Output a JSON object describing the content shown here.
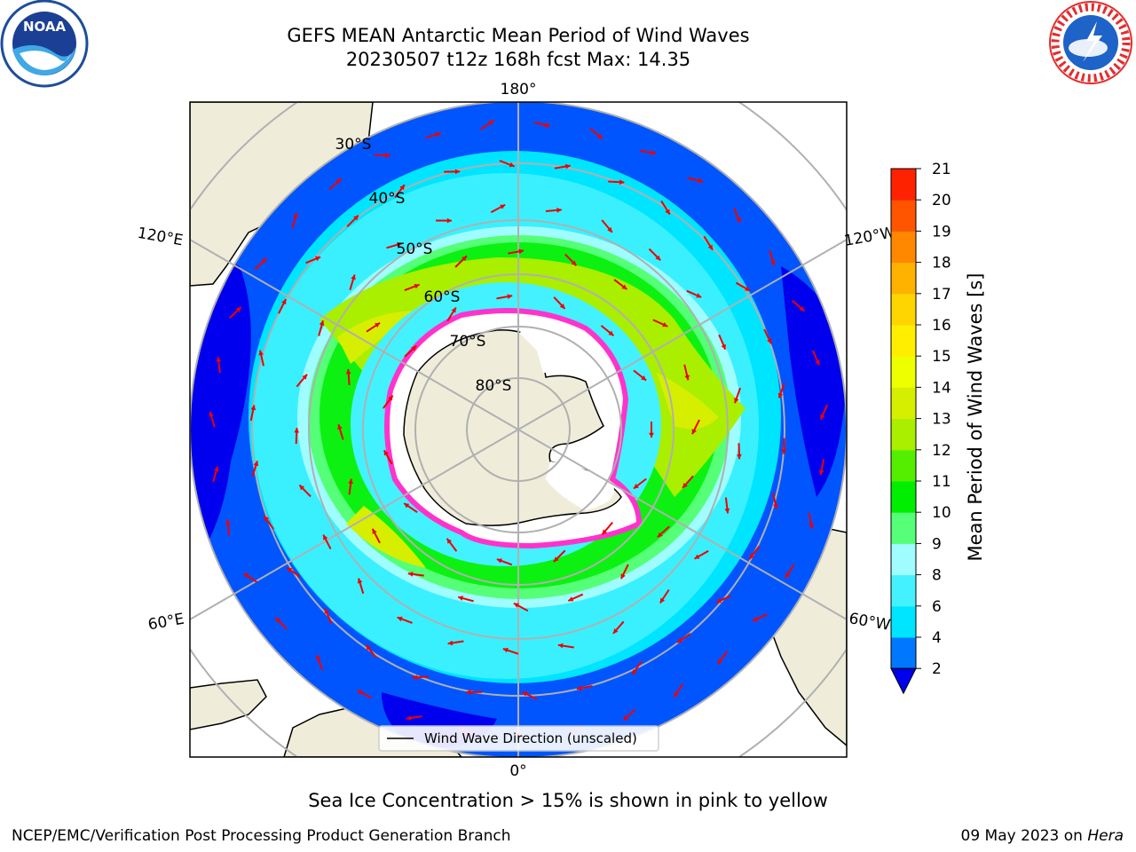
{
  "header": {
    "title_line1": "GEFS MEAN Antarctic Mean Period of Wind Waves",
    "title_line2": "20230507 t12z 168h fcst   Max: 14.35"
  },
  "logos": {
    "noaa": {
      "text": "NOAA"
    },
    "nws": {
      "text": "NATIONAL WEATHER SERVICE"
    }
  },
  "map": {
    "projection": "south polar stereographic",
    "longitude_labels": {
      "top": "180°",
      "bottom": "0°",
      "left_upper": "120°E",
      "left_lower": "60°E",
      "right_upper": "120°W",
      "right_lower": "60°W"
    },
    "latitude_labels": [
      "30°S",
      "40°S",
      "50°S",
      "60°S",
      "70°S",
      "80°S"
    ],
    "legend": {
      "entry": "Wind Wave Direction (unscaled)"
    }
  },
  "colorbar": {
    "label": "Mean Period of Wind Waves [s]",
    "ticks": [
      "2",
      "4",
      "6",
      "8",
      "9",
      "10",
      "11",
      "12",
      "13",
      "14",
      "15",
      "16",
      "17",
      "18",
      "19",
      "20",
      "21"
    ],
    "colors": [
      "#0077ff",
      "#00e5ff",
      "#44f2ff",
      "#9ffcff",
      "#55ff77",
      "#00ee00",
      "#55ee00",
      "#aaee00",
      "#d6ee00",
      "#eeff00",
      "#ffee00",
      "#ffd500",
      "#ffb200",
      "#ff8800",
      "#ff5500",
      "#ff2200"
    ],
    "extend_color": "#0000ee"
  },
  "colors": {
    "land": "#efedda",
    "ice": "#ffffff",
    "ice_edge": "#ff33cc",
    "ocean_low": "#0000ee",
    "arrows": "#ee0000",
    "grid": "#b0b0b0"
  },
  "footer": {
    "note": "Sea Ice Concentration > 15% is shown in pink to yellow",
    "credit_left": "NCEP/EMC/Verification Post Processing Product Generation Branch",
    "credit_date": "09 May 2023 on",
    "credit_host": "Hera"
  }
}
